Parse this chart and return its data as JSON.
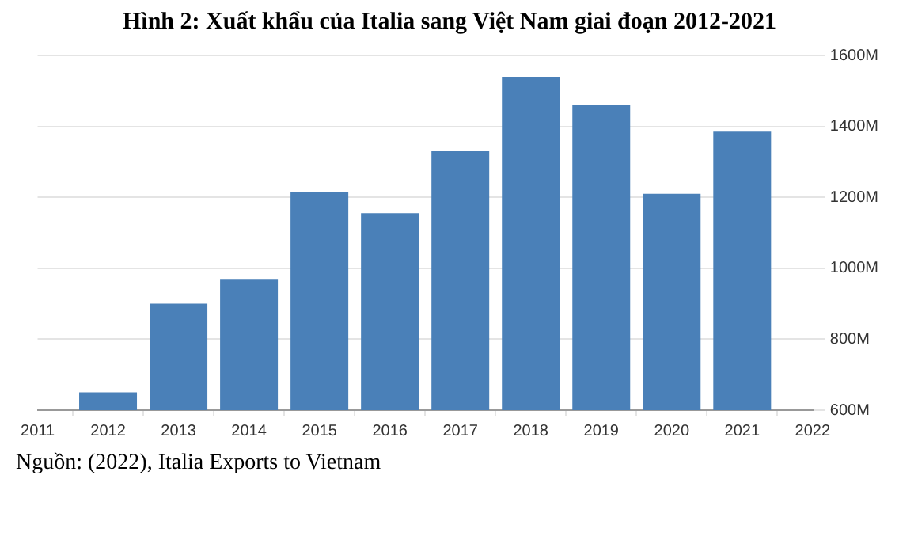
{
  "chart_data": {
    "type": "bar",
    "title": "Hình 2: Xuất khẩu của Italia sang Việt Nam giai đoạn 2012-2021",
    "x": [
      2012,
      2013,
      2014,
      2015,
      2016,
      2017,
      2018,
      2019,
      2020,
      2021
    ],
    "values": [
      650,
      900,
      970,
      1215,
      1155,
      1330,
      1540,
      1460,
      1210,
      1385
    ],
    "color": "#4a80b8",
    "xlim": [
      2011,
      2022
    ],
    "xticks": [
      2011,
      2012,
      2013,
      2014,
      2015,
      2016,
      2017,
      2018,
      2019,
      2020,
      2021,
      2022
    ],
    "ylim": [
      600,
      1600
    ],
    "yticks": [
      {
        "value": 600,
        "label": "600M"
      },
      {
        "value": 800,
        "label": "800M"
      },
      {
        "value": 1000,
        "label": "1000M"
      },
      {
        "value": 1200,
        "label": "1200M"
      },
      {
        "value": 1400,
        "label": "1400M"
      },
      {
        "value": 1600,
        "label": "1600M"
      }
    ],
    "grid": "y",
    "annotations": [
      "Nguồn: (2022), Italia Exports to Vietnam"
    ]
  }
}
